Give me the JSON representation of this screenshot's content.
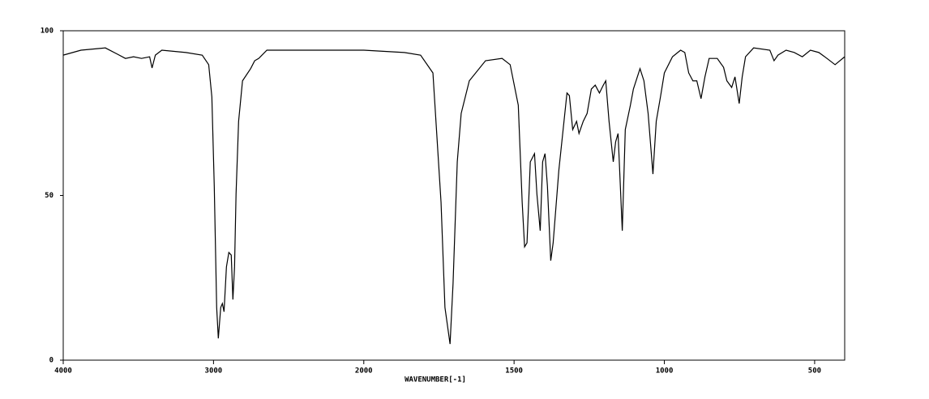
{
  "chart_data": {
    "type": "line",
    "x_label": "WAVENUMBER[-1]",
    "xlim": [
      4000,
      400
    ],
    "xticks": [
      4000,
      3000,
      2000,
      1500,
      1000,
      500
    ],
    "ylim": [
      0,
      100
    ],
    "yticks": [
      0,
      50,
      100
    ],
    "series": [
      {
        "color": "#000000",
        "x": [
          4000,
          3882,
          3720,
          3640,
          3586,
          3532,
          3479,
          3425,
          3409,
          3387,
          3344,
          3183,
          3075,
          3032,
          3011,
          2995,
          2979,
          2968,
          2952,
          2941,
          2930,
          2914,
          2898,
          2882,
          2871,
          2860,
          2850,
          2833,
          2807,
          2753,
          2726,
          2699,
          2645,
          2269,
          2000,
          1865,
          1811,
          1770,
          1743,
          1730,
          1713,
          1703,
          1689,
          1676,
          1649,
          1595,
          1540,
          1513,
          1486,
          1473,
          1465,
          1457,
          1446,
          1432,
          1424,
          1413,
          1405,
          1397,
          1389,
          1378,
          1370,
          1351,
          1324,
          1316,
          1305,
          1292,
          1284,
          1270,
          1257,
          1243,
          1230,
          1216,
          1203,
          1195,
          1184,
          1170,
          1162,
          1154,
          1140,
          1130,
          1113,
          1103,
          1081,
          1068,
          1054,
          1038,
          1027,
          1013,
          1000,
          973,
          946,
          932,
          919,
          905,
          892,
          878,
          865,
          851,
          824,
          803,
          792,
          776,
          765,
          751,
          741,
          730,
          703,
          649,
          635,
          622,
          595,
          568,
          541,
          514,
          486,
          459,
          432,
          400
        ],
        "values": [
          92.6,
          94.1,
          94.8,
          92.9,
          91.6,
          92.1,
          91.6,
          92.1,
          88.7,
          92.6,
          94.1,
          93.4,
          92.6,
          89.7,
          79.9,
          52.8,
          16.0,
          6.6,
          16.0,
          17.2,
          14.7,
          28.3,
          32.7,
          31.9,
          18.4,
          28.3,
          50.4,
          72.5,
          84.8,
          88.5,
          90.9,
          91.6,
          94.1,
          94.1,
          94.1,
          93.4,
          92.6,
          87.2,
          47.9,
          16.0,
          4.9,
          23.3,
          60.2,
          74.9,
          84.8,
          90.9,
          91.6,
          89.7,
          77.4,
          47.9,
          34.4,
          35.6,
          60.2,
          62.7,
          50.4,
          39.3,
          60.2,
          62.7,
          52.8,
          30.2,
          35.6,
          57.7,
          81.1,
          80.3,
          70.0,
          72.5,
          68.8,
          72.5,
          74.9,
          82.3,
          83.5,
          81.1,
          83.5,
          84.8,
          72.5,
          60.2,
          66.3,
          68.8,
          39.3,
          70.0,
          77.4,
          82.3,
          88.5,
          84.8,
          74.9,
          56.5,
          72.5,
          79.9,
          87.2,
          92.1,
          94.1,
          93.4,
          87.2,
          84.8,
          84.8,
          79.4,
          86.0,
          91.6,
          91.6,
          88.9,
          84.8,
          82.8,
          86.0,
          77.9,
          86.0,
          92.1,
          94.8,
          94.1,
          90.9,
          92.6,
          94.1,
          93.4,
          92.1,
          94.1,
          93.4,
          91.6,
          89.7,
          92.1
        ]
      }
    ]
  }
}
